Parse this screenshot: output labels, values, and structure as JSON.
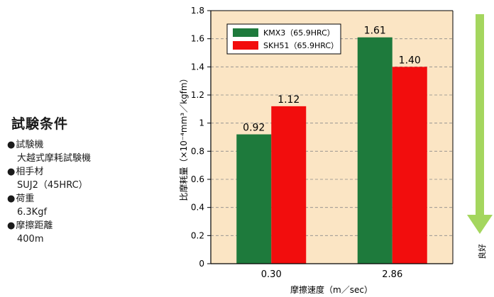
{
  "conditions": {
    "title": "試験条件",
    "items": [
      {
        "label": "試験機",
        "value": "大越式摩耗試験機"
      },
      {
        "label": "相手材",
        "value": "SUJ2（45HRC）"
      },
      {
        "label": "荷重",
        "value": "6.3Kgf"
      },
      {
        "label": "摩擦距離",
        "value": "400m"
      }
    ]
  },
  "chart_data": {
    "type": "bar",
    "categories": [
      "0.30",
      "2.86"
    ],
    "series": [
      {
        "name": "KMX3（65.9HRC）",
        "color": "#1e7a3c",
        "values": [
          0.92,
          1.61
        ],
        "labels": [
          "0.92",
          "1.61"
        ]
      },
      {
        "name": "SKH51（65.9HRC）",
        "color": "#f20d0d",
        "values": [
          1.12,
          1.4
        ],
        "labels": [
          "1.12",
          "1.40"
        ]
      }
    ],
    "xlabel": "摩擦速度（m／sec）",
    "ylabel": "比摩耗量（×10⁻⁴mm³／kgfm）",
    "ylim": [
      0,
      1.8
    ],
    "yticks": [
      0,
      0.2,
      0.4,
      0.6,
      0.8,
      1,
      1.2,
      1.4,
      1.6,
      1.8
    ],
    "ytick_labels": [
      "0",
      "0.2",
      "0.4",
      "0.6",
      "0.8",
      "1",
      "1.2",
      "1.4",
      "1.6",
      "1.8"
    ],
    "grid": true,
    "legend_position": "top-left",
    "plot_background": "#fbe5c4",
    "arrow_label": "良好",
    "arrow_color": "#a4d65e"
  }
}
